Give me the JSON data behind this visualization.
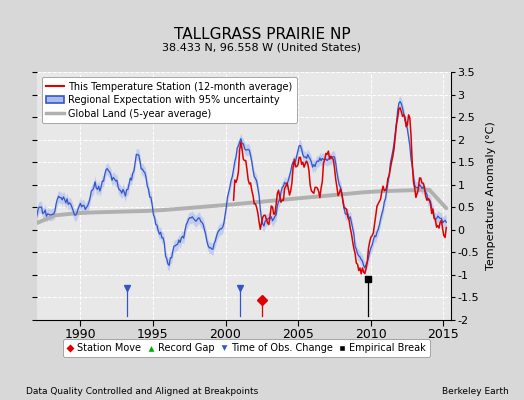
{
  "title": "TALLGRASS PRAIRIE NP",
  "subtitle": "38.433 N, 96.558 W (United States)",
  "ylabel": "Temperature Anomaly (°C)",
  "footer_left": "Data Quality Controlled and Aligned at Breakpoints",
  "footer_right": "Berkeley Earth",
  "xlim": [
    1987.0,
    2015.5
  ],
  "ylim": [
    -2.0,
    3.5
  ],
  "yticks": [
    -2.0,
    -1.5,
    -1.0,
    -0.5,
    0.0,
    0.5,
    1.0,
    1.5,
    2.0,
    2.5,
    3.0,
    3.5
  ],
  "xticks": [
    1990,
    1995,
    2000,
    2005,
    2010,
    2015
  ],
  "bg_color": "#d8d8d8",
  "plot_bg_color": "#e8e8e8",
  "grid_color": "#ffffff",
  "regional_color": "#3355cc",
  "regional_fill": "#aabbee",
  "station_color": "#dd0000",
  "global_color": "#b0b0b0",
  "time_obs_color": "#3355cc",
  "station_move_color": "#dd0000",
  "emp_break_color": "#000000",
  "record_gap_color": "#00aa00"
}
